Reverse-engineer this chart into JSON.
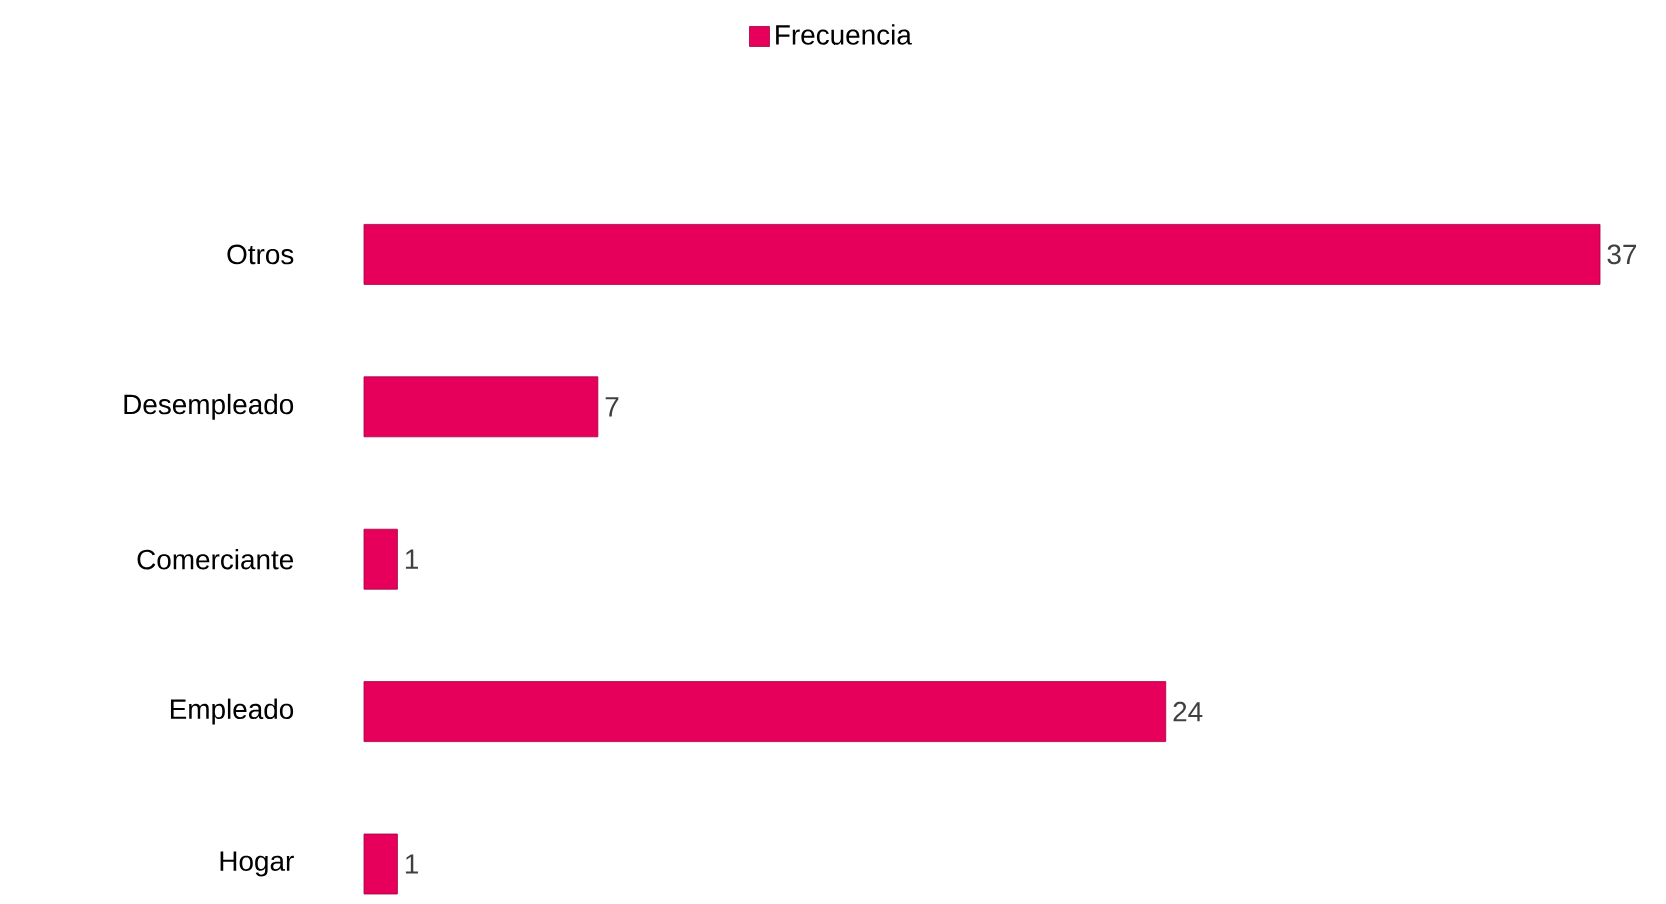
{
  "chart_data": {
    "type": "bar",
    "orientation": "horizontal",
    "categories": [
      "Otros",
      "Desempleado",
      "Comerciante",
      "Empleado",
      "Hogar"
    ],
    "series": [
      {
        "name": "Frecuencia",
        "color": "#e6005c",
        "values": [
          37,
          7,
          1,
          24,
          1
        ]
      }
    ],
    "data_labels": true,
    "legend": "top"
  }
}
